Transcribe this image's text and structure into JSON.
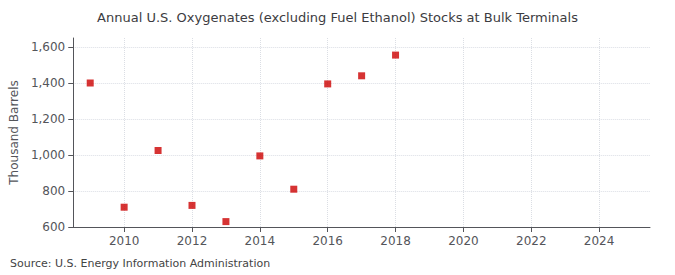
{
  "chart_data": {
    "type": "scatter",
    "title": "Annual U.S. Oxygenates (excluding Fuel Ethanol) Stocks at Bulk Terminals",
    "ylabel": "Thousand Barrels",
    "source": "Source: U.S. Energy Information Administration",
    "x": [
      2009,
      2010,
      2011,
      2012,
      2013,
      2014,
      2015,
      2016,
      2017,
      2018
    ],
    "values": [
      1400,
      710,
      1025,
      720,
      630,
      995,
      810,
      1395,
      1440,
      1555
    ],
    "color": "#cc0000",
    "marker": "square",
    "xlim": [
      2008.5,
      2025.5
    ],
    "xticks": [
      2010,
      2012,
      2014,
      2016,
      2018,
      2020,
      2022,
      2024
    ],
    "ylim": [
      600,
      1650
    ],
    "yticks": [
      600,
      800,
      {
        "value": 1000,
        "label": "1,000"
      },
      {
        "value": 1200,
        "label": "1,200"
      },
      {
        "value": 1400,
        "label": "1,400"
      },
      {
        "value": 1600,
        "label": "1,600"
      }
    ],
    "grid": true
  }
}
